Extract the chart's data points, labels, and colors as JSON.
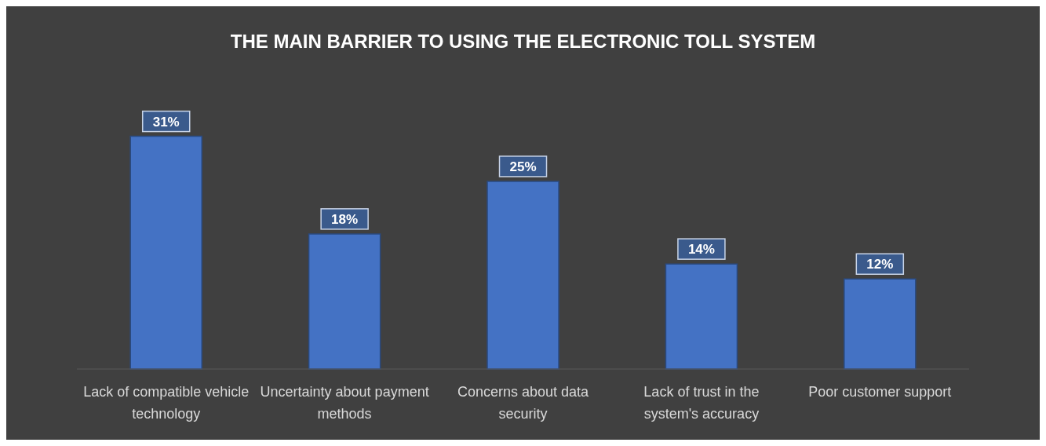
{
  "chart_data": {
    "type": "bar",
    "title": "THE MAIN BARRIER TO USING THE ELECTRONIC TOLL SYSTEM",
    "categories": [
      "Lack of compatible vehicle technology",
      "Uncertainty about payment methods",
      "Concerns about data security",
      "Lack of trust in the system's accuracy",
      "Poor customer support"
    ],
    "values": [
      31,
      18,
      25,
      14,
      12
    ],
    "color": "#4472c4",
    "value_labels": [
      "31%",
      "18%",
      "25%",
      "14%",
      "12%"
    ]
  }
}
